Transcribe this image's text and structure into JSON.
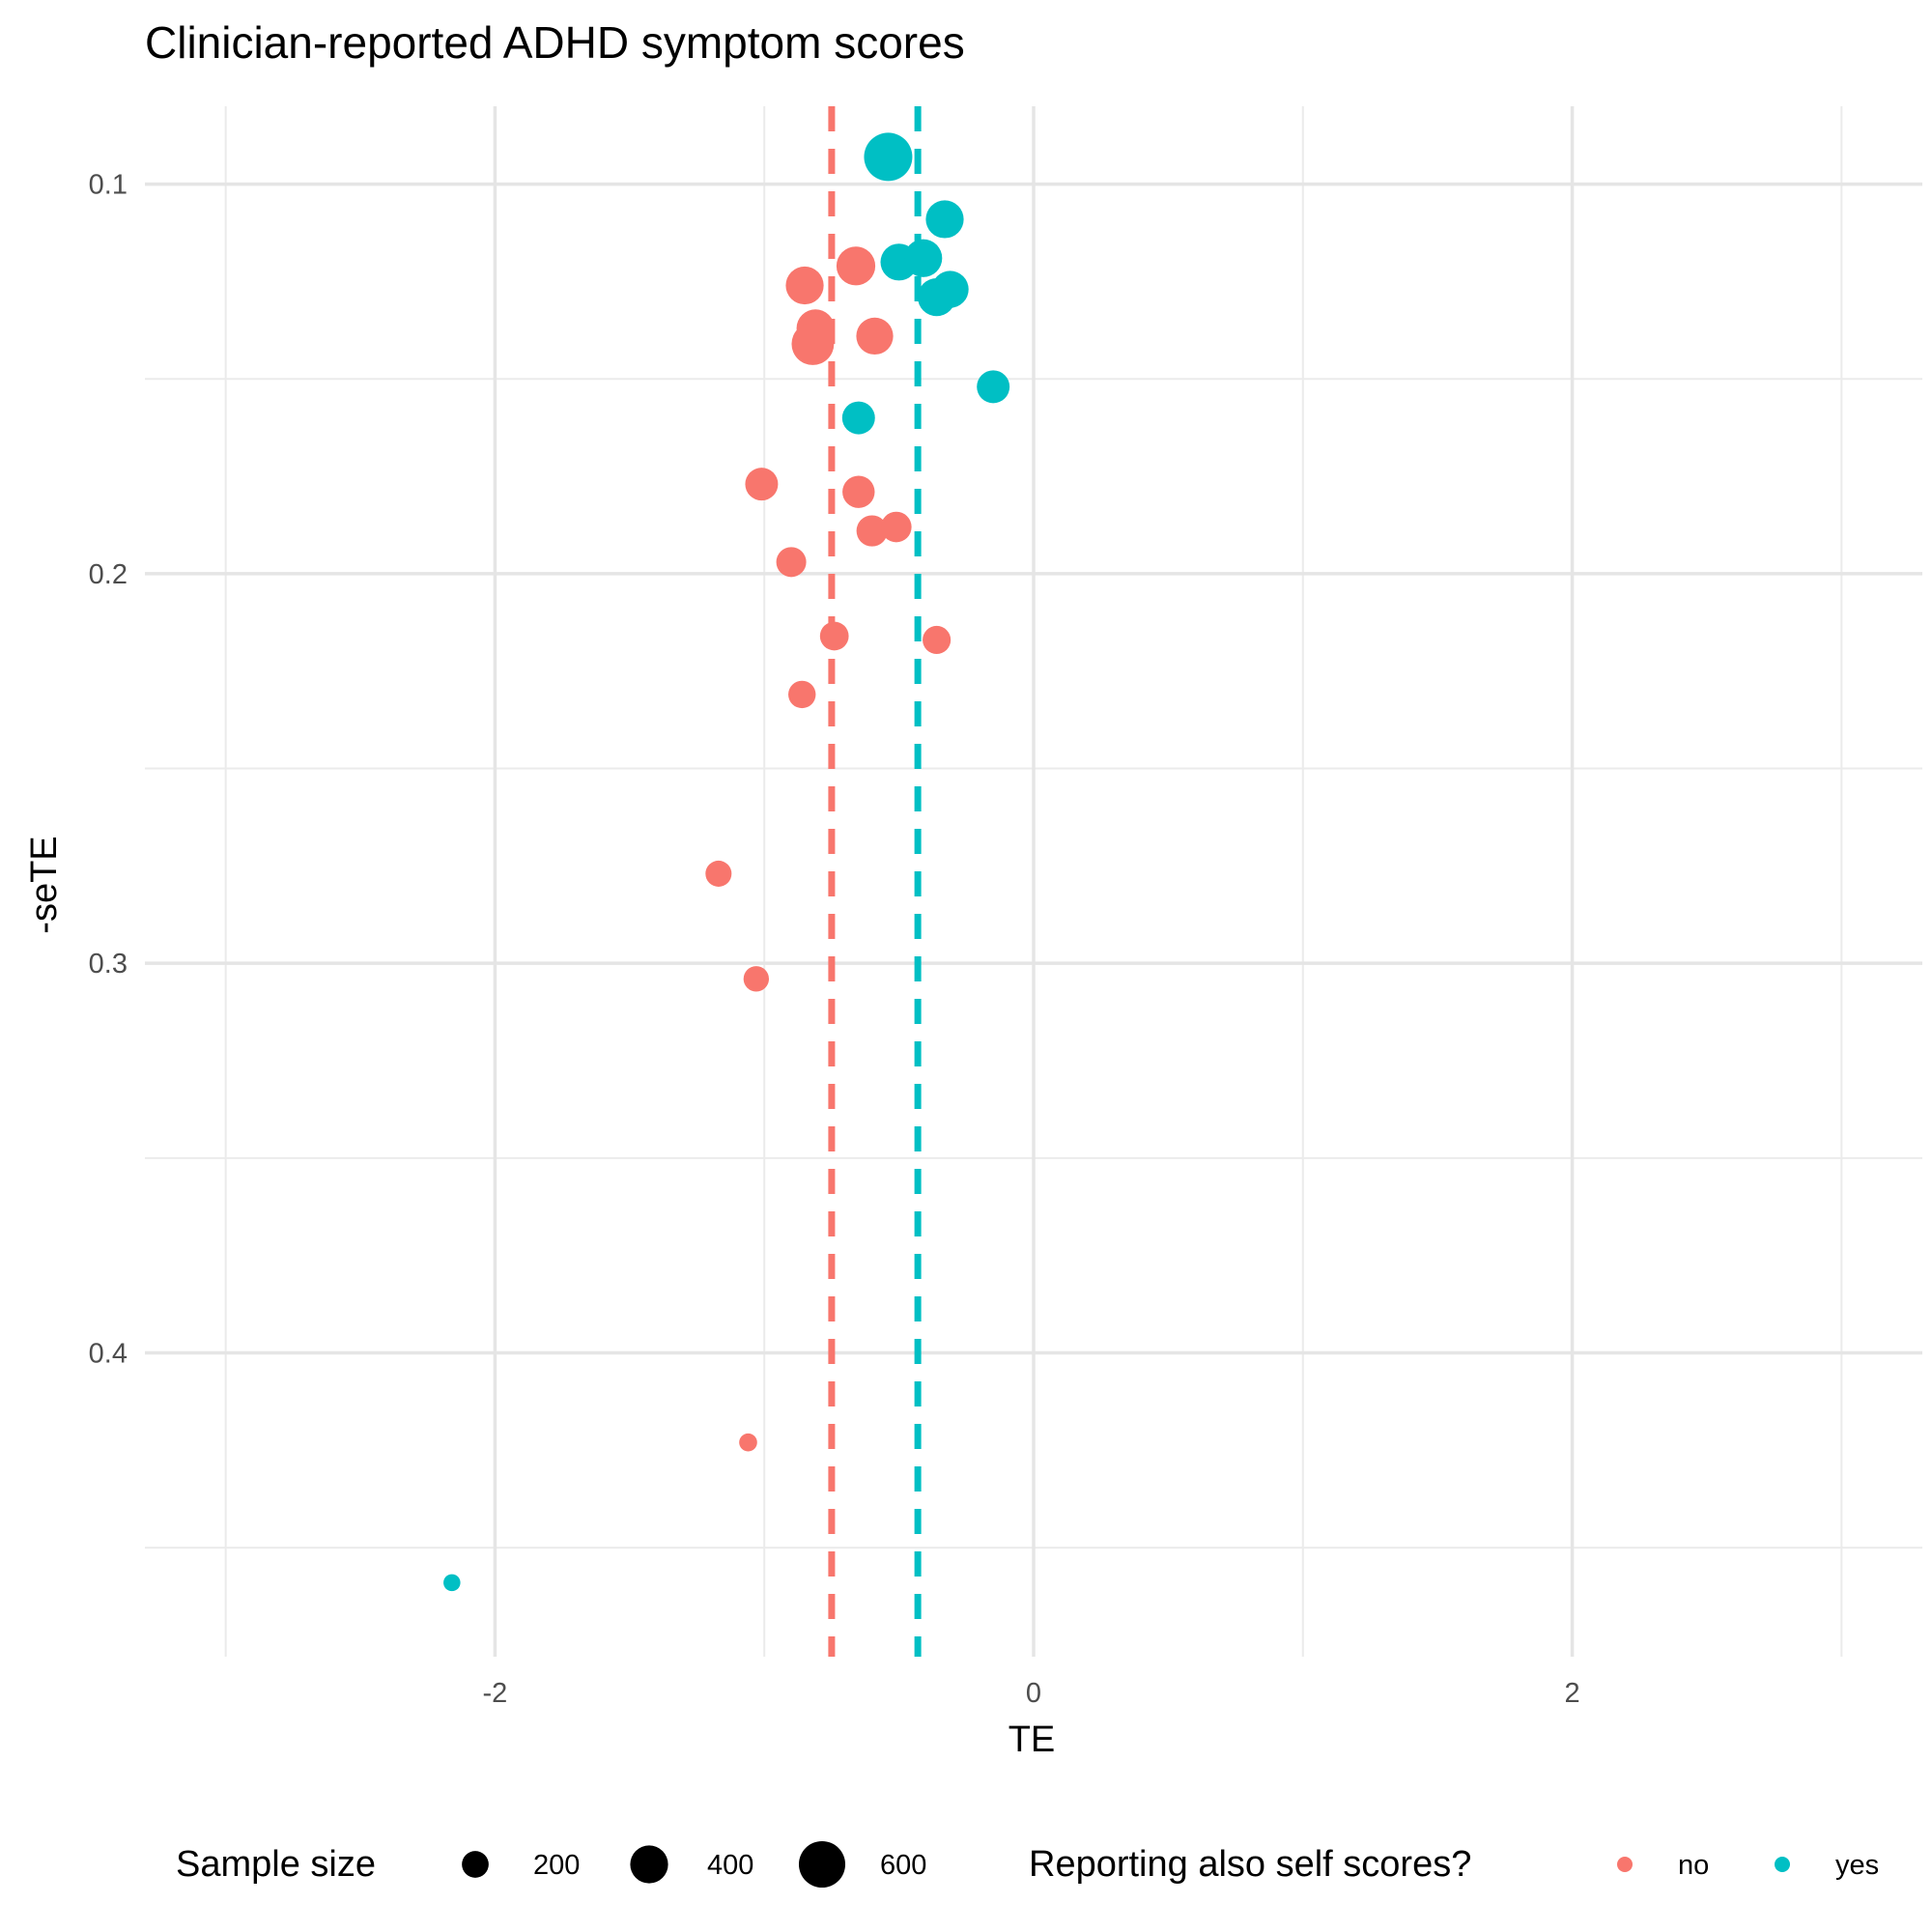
{
  "chart_data": {
    "type": "scatter",
    "title": "Clinician-reported ADHD symptom scores",
    "xlabel": "TE",
    "ylabel": "-seTE",
    "xlim": [
      -3.3,
      3.3
    ],
    "ylim": [
      0.08,
      0.478
    ],
    "y_reversed": true,
    "x_ticks": [
      -2,
      0,
      2
    ],
    "x_tick_labels": [
      "-2",
      "0",
      "2"
    ],
    "y_ticks": [
      0.1,
      0.2,
      0.3,
      0.4
    ],
    "y_tick_labels": [
      "0.1",
      "0.2",
      "0.3",
      "0.4"
    ],
    "x_minor_grid": [
      -3,
      -1,
      1,
      3
    ],
    "y_minor_grid": [
      0.15,
      0.25,
      0.35,
      0.45
    ],
    "grid": true,
    "legend_position": "bottom",
    "colors": {
      "no": "#F8766D",
      "yes": "#00BFC4"
    },
    "reference_lines": [
      {
        "group": "no",
        "x": -0.75
      },
      {
        "group": "yes",
        "x": -0.43
      }
    ],
    "series": [
      {
        "name": "no",
        "points": [
          {
            "x": -0.85,
            "y": 0.126,
            "n": 400
          },
          {
            "x": -0.66,
            "y": 0.121,
            "n": 420
          },
          {
            "x": -0.81,
            "y": 0.137,
            "n": 400
          },
          {
            "x": -0.82,
            "y": 0.141,
            "n": 500
          },
          {
            "x": -0.59,
            "y": 0.139,
            "n": 380
          },
          {
            "x": -1.01,
            "y": 0.177,
            "n": 300
          },
          {
            "x": -0.65,
            "y": 0.179,
            "n": 290
          },
          {
            "x": -0.6,
            "y": 0.189,
            "n": 270
          },
          {
            "x": -0.51,
            "y": 0.188,
            "n": 260
          },
          {
            "x": -0.9,
            "y": 0.197,
            "n": 250
          },
          {
            "x": -0.74,
            "y": 0.216,
            "n": 230
          },
          {
            "x": -0.36,
            "y": 0.217,
            "n": 220
          },
          {
            "x": -0.86,
            "y": 0.231,
            "n": 210
          },
          {
            "x": -1.17,
            "y": 0.277,
            "n": 190
          },
          {
            "x": -1.03,
            "y": 0.304,
            "n": 180
          },
          {
            "x": -1.06,
            "y": 0.423,
            "n": 90
          }
        ]
      },
      {
        "name": "yes",
        "points": [
          {
            "x": -0.54,
            "y": 0.093,
            "n": 650
          },
          {
            "x": -0.33,
            "y": 0.109,
            "n": 400
          },
          {
            "x": -0.5,
            "y": 0.12,
            "n": 380
          },
          {
            "x": -0.41,
            "y": 0.119,
            "n": 400
          },
          {
            "x": -0.36,
            "y": 0.129,
            "n": 400
          },
          {
            "x": -0.31,
            "y": 0.127,
            "n": 380
          },
          {
            "x": -0.15,
            "y": 0.152,
            "n": 300
          },
          {
            "x": -0.65,
            "y": 0.16,
            "n": 300
          },
          {
            "x": -2.16,
            "y": 0.459,
            "n": 80
          }
        ]
      }
    ],
    "legend": {
      "size_title": "Sample size",
      "size_breaks": [
        200,
        400,
        600
      ],
      "size_labels": [
        "200",
        "400",
        "600"
      ],
      "color_title": "Reporting also self scores?",
      "color_labels": [
        "no",
        "yes"
      ]
    }
  }
}
